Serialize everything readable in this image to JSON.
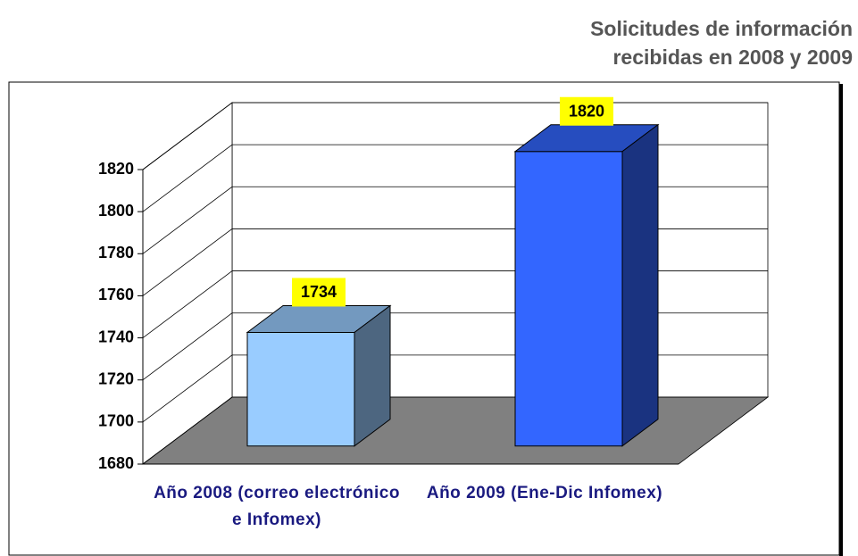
{
  "chart_data": {
    "type": "bar3d",
    "title": [
      "Solicitudes de información",
      "recibidas en 2008 y 2009"
    ],
    "categories": [
      "Año 2008 (correo electrónico e Infomex)",
      "Año 2009 (Ene-Dic Infomex)"
    ],
    "values": [
      1734,
      1820
    ],
    "colors": [
      "#99ccff",
      "#3366ff"
    ],
    "ylim": [
      1680,
      1820
    ],
    "yticks": [
      1680,
      1700,
      1720,
      1740,
      1760,
      1780,
      1800,
      1820
    ],
    "grid": true
  }
}
